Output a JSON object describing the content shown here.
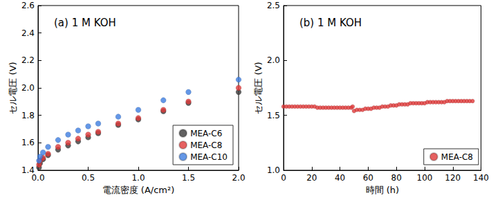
{
  "chart_data": [
    {
      "type": "scatter",
      "title": "(a) 1 M KOH",
      "x_label": "電流密度 (A/cm²)",
      "y_label": "セル電圧 (V)",
      "xlim": [
        0,
        2.0
      ],
      "xticks": [
        {
          "value": 0,
          "label": "0.0"
        },
        0.5,
        {
          "value": 1,
          "label": "1.0"
        },
        1.5,
        {
          "value": 2,
          "label": "2.0"
        }
      ],
      "ylim": [
        1.4,
        2.6
      ],
      "yticks": [
        1.4,
        1.6,
        1.8,
        {
          "value": 2,
          "label": "2.0"
        },
        2.2,
        2.4,
        2.6
      ],
      "grid": false,
      "legend": "lower right",
      "marker": "circle",
      "x": [
        0.01,
        0.02,
        0.05,
        0.1,
        0.2,
        0.3,
        0.4,
        0.5,
        0.6,
        0.8,
        1.0,
        1.25,
        1.5,
        2.0
      ],
      "series": [
        {
          "name": "MEA-C6",
          "color": "#3a3a3a",
          "values": [
            1.42,
            1.45,
            1.48,
            1.51,
            1.55,
            1.58,
            1.61,
            1.64,
            1.67,
            1.73,
            1.77,
            1.83,
            1.89,
            1.97
          ]
        },
        {
          "name": "MEA-C8",
          "color": "#e03a3a",
          "values": [
            1.44,
            1.47,
            1.49,
            1.52,
            1.57,
            1.6,
            1.63,
            1.66,
            1.68,
            1.74,
            1.78,
            1.84,
            1.9,
            2.0
          ]
        },
        {
          "name": "MEA-C10",
          "color": "#3d7de0",
          "values": [
            1.47,
            1.5,
            1.53,
            1.57,
            1.62,
            1.66,
            1.69,
            1.72,
            1.74,
            1.79,
            1.84,
            1.91,
            1.97,
            2.06
          ]
        }
      ]
    },
    {
      "type": "scatter",
      "title": "(b) 1 M KOH",
      "x_label": "時間 (h)",
      "y_label": "セル電圧 (V)",
      "xlim": [
        0,
        140
      ],
      "xticks": [
        0,
        20,
        40,
        60,
        80,
        100,
        120,
        140
      ],
      "ylim": [
        1.0,
        2.5
      ],
      "yticks": [
        {
          "value": 1,
          "label": "1.0"
        },
        1.5,
        {
          "value": 2,
          "label": "2.0"
        },
        2.5
      ],
      "grid": false,
      "legend": "lower right",
      "marker": "circle",
      "x": [
        0,
        2,
        4,
        6,
        8,
        10,
        12,
        14,
        16,
        18,
        20,
        22,
        24,
        26,
        28,
        30,
        32,
        34,
        36,
        38,
        40,
        42,
        44,
        46,
        48,
        49,
        50,
        52,
        54,
        56,
        58,
        60,
        62,
        64,
        66,
        68,
        70,
        72,
        74,
        76,
        78,
        80,
        82,
        84,
        86,
        88,
        90,
        92,
        94,
        96,
        98,
        100,
        102,
        104,
        106,
        108,
        110,
        112,
        114,
        116,
        118,
        120,
        122,
        124,
        126,
        128,
        130,
        132,
        134
      ],
      "series": [
        {
          "name": "MEA-C8",
          "color": "#e03a3a",
          "values": [
            1.58,
            1.58,
            1.58,
            1.58,
            1.58,
            1.58,
            1.58,
            1.58,
            1.58,
            1.58,
            1.58,
            1.58,
            1.57,
            1.57,
            1.57,
            1.57,
            1.57,
            1.57,
            1.57,
            1.57,
            1.57,
            1.57,
            1.57,
            1.57,
            1.57,
            1.58,
            1.54,
            1.55,
            1.55,
            1.55,
            1.56,
            1.56,
            1.56,
            1.57,
            1.57,
            1.57,
            1.58,
            1.58,
            1.58,
            1.59,
            1.59,
            1.59,
            1.6,
            1.6,
            1.6,
            1.6,
            1.61,
            1.61,
            1.61,
            1.61,
            1.61,
            1.61,
            1.62,
            1.62,
            1.62,
            1.62,
            1.62,
            1.62,
            1.62,
            1.63,
            1.63,
            1.63,
            1.63,
            1.63,
            1.63,
            1.63,
            1.63,
            1.63,
            1.63
          ]
        }
      ]
    }
  ]
}
